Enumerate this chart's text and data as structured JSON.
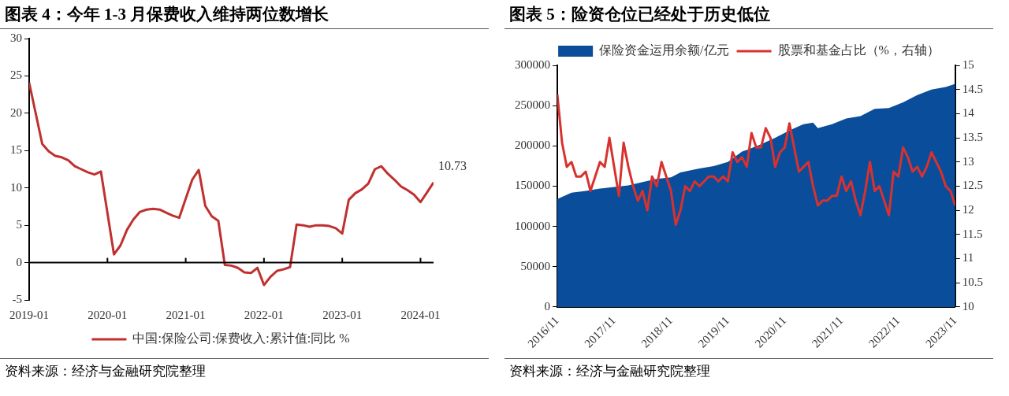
{
  "chart_data": [
    {
      "type": "line",
      "title": "图表 4：今年 1-3 月保费收入维持两位数增长",
      "x": [
        "2019-01",
        "2019-03",
        "2019-04",
        "2019-05",
        "2019-06",
        "2019-07",
        "2019-08",
        "2019-09",
        "2019-10",
        "2019-11",
        "2019-12",
        "2020-02",
        "2020-03",
        "2020-04",
        "2020-05",
        "2020-06",
        "2020-07",
        "2020-08",
        "2020-09",
        "2020-10",
        "2020-11",
        "2020-12",
        "2021-02",
        "2021-03",
        "2021-04",
        "2021-05",
        "2021-06",
        "2021-07",
        "2021-08",
        "2021-09",
        "2021-10",
        "2021-11",
        "2021-12",
        "2022-01",
        "2022-02",
        "2022-03",
        "2022-04",
        "2022-05",
        "2022-06",
        "2022-07",
        "2022-08",
        "2022-09",
        "2022-10",
        "2022-11",
        "2022-12",
        "2023-01",
        "2023-02",
        "2023-03",
        "2023-04",
        "2023-05",
        "2023-06",
        "2023-07",
        "2023-08",
        "2023-09",
        "2023-10",
        "2023-11",
        "2023-12",
        "2024-01",
        "2024-02",
        "2024-03"
      ],
      "series": [
        {
          "name": "中国:保险公司:保费收入:累计值:同比 %",
          "color": "#c0302f",
          "values": [
            24.1,
            15.9,
            14.9,
            14.3,
            14.1,
            13.7,
            12.9,
            12.5,
            12.1,
            11.8,
            12.2,
            1.1,
            2.3,
            4.4,
            5.8,
            6.8,
            7.1,
            7.2,
            7.1,
            6.7,
            6.3,
            6.0,
            11.1,
            12.4,
            7.6,
            6.2,
            5.6,
            -0.3,
            -0.4,
            -0.7,
            -1.3,
            -1.4,
            -0.7,
            -3.0,
            -1.9,
            -1.1,
            -0.9,
            -0.6,
            5.1,
            5.0,
            4.8,
            5.0,
            5.0,
            4.9,
            4.6,
            3.9,
            8.4,
            9.3,
            9.8,
            10.6,
            12.5,
            12.9,
            11.9,
            11.1,
            10.2,
            9.7,
            9.1,
            8.1,
            9.4,
            10.73
          ]
        }
      ],
      "xlim": [
        "2019-01",
        "2024-03"
      ],
      "xticks": [
        "2019-01",
        "2020-01",
        "2021-01",
        "2022-01",
        "2023-01",
        "2024-01"
      ],
      "ylim": [
        -5,
        30
      ],
      "yticks": [
        -5,
        0,
        5,
        10,
        15,
        20,
        25,
        30
      ],
      "legend": "bottom",
      "annotations": [
        {
          "text": "10.73",
          "x": "2024-03",
          "y": 10.73
        },
        "资料来源：经济与金融研究院整理"
      ]
    },
    {
      "type": "line",
      "title": "图表 5：险资仓位已经处于历史低位",
      "series": [
        {
          "name": "保险资金运用余额/亿元",
          "type": "area",
          "color": "#0a4d9b",
          "x": [
            "2016-11",
            "2017-02",
            "2017-05",
            "2017-08",
            "2017-11",
            "2018-02",
            "2018-05",
            "2018-08",
            "2018-11",
            "2019-01",
            "2019-05",
            "2019-08",
            "2019-11",
            "2020-02",
            "2020-03",
            "2020-06",
            "2020-09",
            "2020-12",
            "2021-03",
            "2021-05",
            "2021-06",
            "2021-09",
            "2021-12",
            "2022-03",
            "2022-06",
            "2022-09",
            "2022-12",
            "2023-03",
            "2023-06",
            "2023-09",
            "2023-11"
          ],
          "values": [
            134000,
            142000,
            144000,
            147000,
            149000,
            151000,
            155000,
            159000,
            161000,
            167000,
            172000,
            175000,
            180000,
            193000,
            195000,
            202000,
            210000,
            219000,
            227000,
            229000,
            222000,
            227000,
            234000,
            237000,
            246000,
            247000,
            254000,
            263000,
            270000,
            273000,
            277000
          ]
        },
        {
          "name": "股票和基金占比（%，右轴）",
          "type": "line",
          "axis": "y2",
          "color": "#d9322e",
          "x": [
            "2016-11",
            "2016-12",
            "2017-01",
            "2017-02",
            "2017-03",
            "2017-04",
            "2017-05",
            "2017-06",
            "2017-07",
            "2017-08",
            "2017-09",
            "2017-10",
            "2017-11",
            "2017-12",
            "2018-01",
            "2018-02",
            "2018-03",
            "2018-04",
            "2018-05",
            "2018-06",
            "2018-07",
            "2018-08",
            "2018-09",
            "2018-10",
            "2018-11",
            "2018-12",
            "2019-01",
            "2019-02",
            "2019-03",
            "2019-04",
            "2019-05",
            "2019-06",
            "2019-07",
            "2019-08",
            "2019-09",
            "2019-10",
            "2019-11",
            "2019-12",
            "2020-01",
            "2020-02",
            "2020-03",
            "2020-04",
            "2020-05",
            "2020-06",
            "2020-07",
            "2020-08",
            "2020-09",
            "2020-10",
            "2020-11",
            "2020-12",
            "2021-01",
            "2021-02",
            "2021-03",
            "2021-04",
            "2021-05",
            "2021-06",
            "2021-07",
            "2021-08",
            "2021-09",
            "2021-10",
            "2021-11",
            "2021-12",
            "2022-01",
            "2022-02",
            "2022-03",
            "2022-04",
            "2022-05",
            "2022-06",
            "2022-07",
            "2022-08",
            "2022-09",
            "2022-10",
            "2022-11",
            "2022-12",
            "2023-01",
            "2023-02",
            "2023-03",
            "2023-04",
            "2023-05",
            "2023-06",
            "2023-07",
            "2023-08",
            "2023-09",
            "2023-10",
            "2023-11"
          ],
          "values": [
            14.4,
            13.4,
            12.9,
            13.0,
            12.7,
            12.7,
            12.8,
            12.4,
            12.7,
            13.0,
            12.9,
            13.5,
            12.9,
            12.3,
            13.4,
            12.9,
            12.5,
            12.2,
            12.4,
            12.0,
            12.7,
            12.5,
            13.0,
            12.7,
            12.4,
            11.7,
            12.0,
            12.5,
            12.4,
            12.6,
            12.5,
            12.6,
            12.7,
            12.7,
            12.6,
            12.7,
            12.6,
            13.2,
            13.0,
            13.1,
            12.9,
            13.6,
            13.3,
            13.3,
            13.7,
            13.5,
            12.9,
            13.2,
            13.3,
            13.8,
            13.3,
            12.8,
            12.9,
            13.0,
            12.5,
            12.1,
            12.2,
            12.2,
            12.3,
            12.3,
            12.7,
            12.4,
            12.6,
            12.2,
            11.9,
            12.4,
            13.0,
            12.4,
            12.5,
            12.2,
            11.9,
            12.8,
            12.7,
            13.3,
            13.1,
            12.8,
            12.9,
            12.7,
            12.9,
            13.2,
            13.0,
            12.8,
            12.5,
            12.4,
            12.1
          ]
        }
      ],
      "xlim": [
        "2016-11",
        "2023-11"
      ],
      "xticks": [
        {
          "value": "2016-11",
          "label": "2016/11"
        },
        {
          "value": "2017-11",
          "label": "2017/11"
        },
        {
          "value": "2018-11",
          "label": "2018/11"
        },
        {
          "value": "2019-11",
          "label": "2019/11"
        },
        {
          "value": "2020-11",
          "label": "2020/11"
        },
        {
          "value": "2021-11",
          "label": "2021/11"
        },
        {
          "value": "2022-11",
          "label": "2022/11"
        },
        {
          "value": "2023-11",
          "label": "2023/11"
        }
      ],
      "ylim": [
        0,
        300000
      ],
      "yticks": [
        0,
        50000,
        100000,
        150000,
        200000,
        250000,
        300000
      ],
      "y2lim": [
        10,
        15
      ],
      "y2ticks": [
        10,
        10.5,
        11,
        11.5,
        12,
        12.5,
        13,
        13.5,
        14,
        14.5,
        15
      ],
      "legend": "top",
      "annotations": [
        "资料来源：经济与金融研究院整理"
      ]
    }
  ]
}
